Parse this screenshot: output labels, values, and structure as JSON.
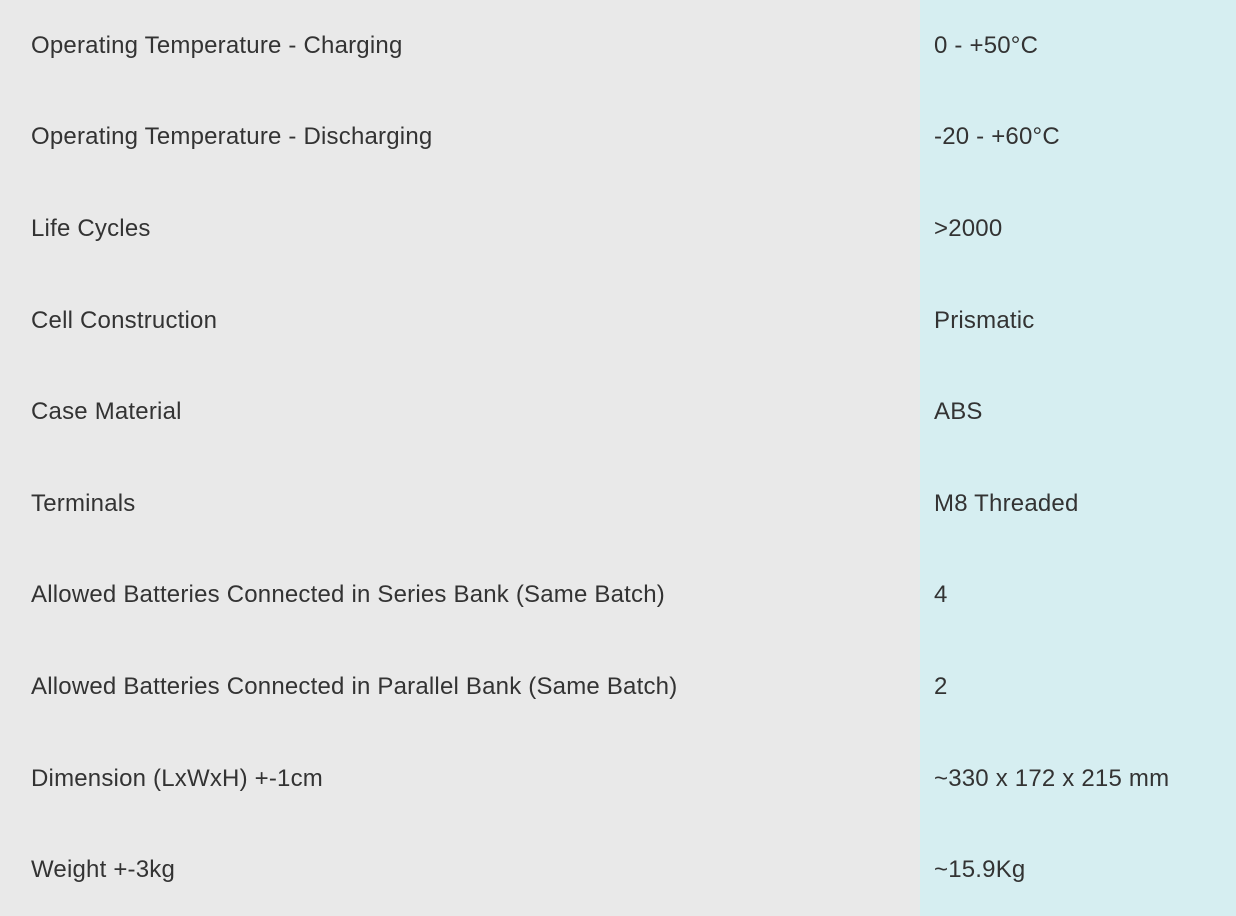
{
  "colors": {
    "label_bg": "#e9e9e9",
    "value_bg": "#d6eef1",
    "text": "#333333"
  },
  "table": {
    "rows": [
      {
        "label": "Operating Temperature - Charging",
        "value": "0 - +50°C"
      },
      {
        "label": "Operating Temperature - Discharging",
        "value": "-20 - +60°C"
      },
      {
        "label": "Life Cycles",
        "value": ">2000"
      },
      {
        "label": "Cell Construction",
        "value": "Prismatic"
      },
      {
        "label": "Case Material",
        "value": "ABS"
      },
      {
        "label": "Terminals",
        "value": "M8 Threaded"
      },
      {
        "label": "Allowed Batteries Connected in Series Bank (Same Batch)",
        "value": "4"
      },
      {
        "label": "Allowed Batteries Connected in Parallel Bank (Same Batch)",
        "value": "2"
      },
      {
        "label": "Dimension (LxWxH) +-1cm",
        "value": "~330 x 172 x 215 mm"
      },
      {
        "label": "Weight +-3kg",
        "value": "~15.9Kg"
      }
    ]
  }
}
